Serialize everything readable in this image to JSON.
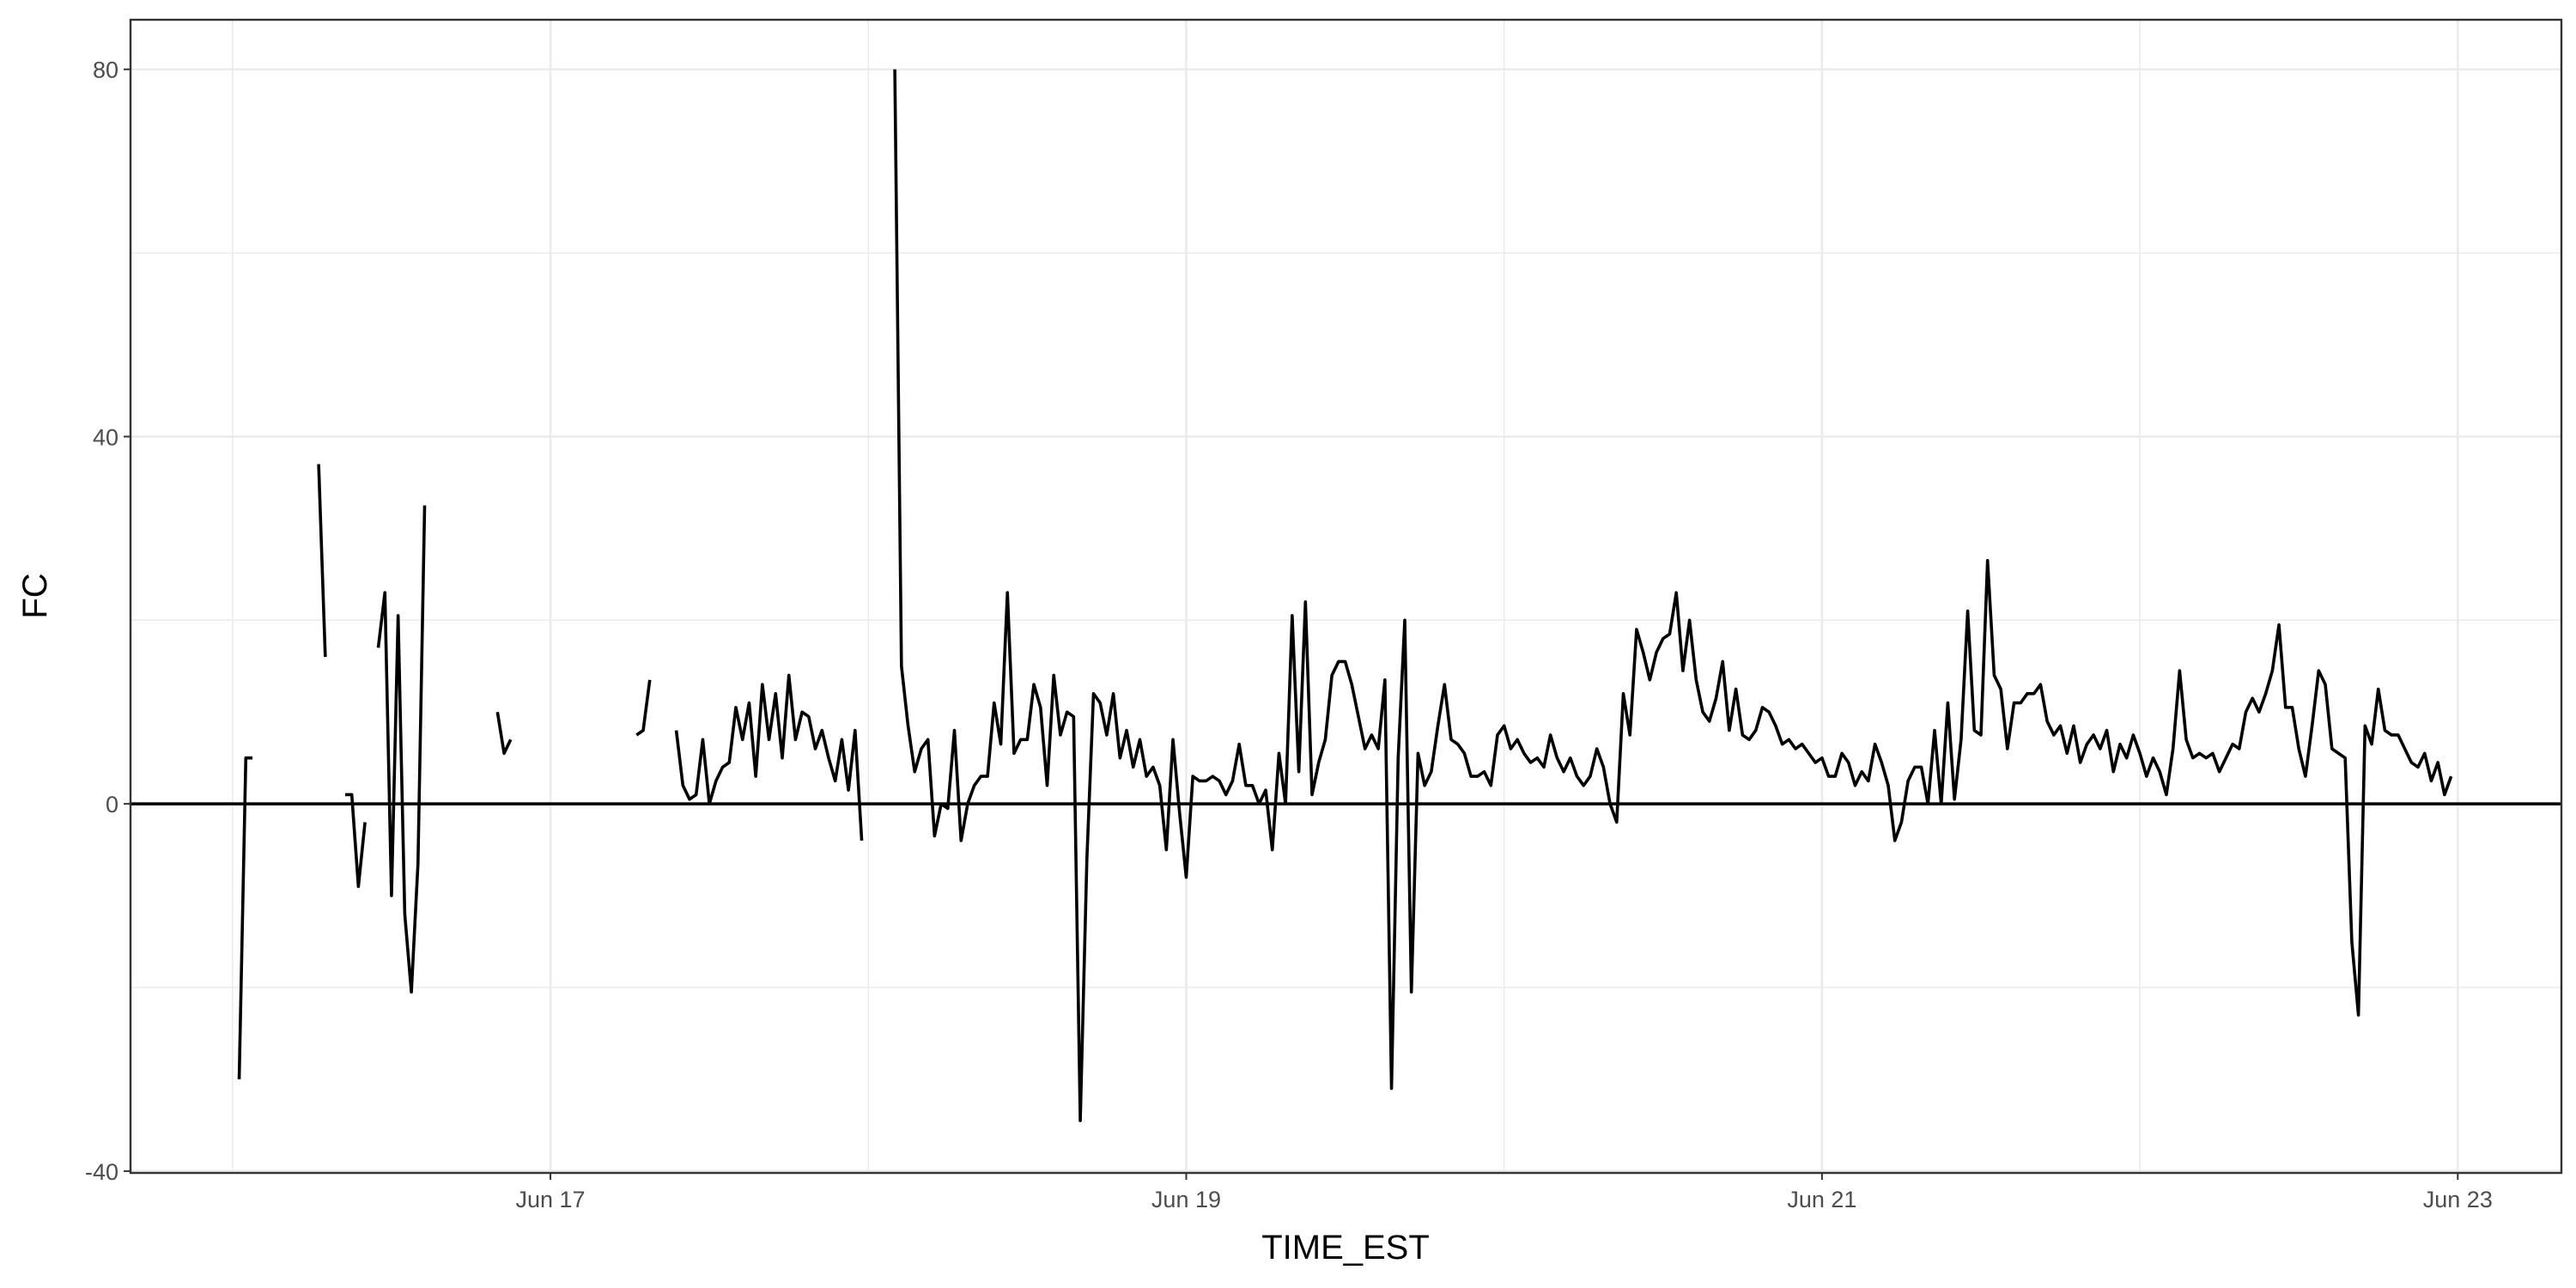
{
  "chart_data": {
    "type": "line",
    "x_label": "TIME_EST",
    "y_label": "FC",
    "color": "#000000",
    "x": [
      16.0208,
      16.0417,
      16.0625,
      16.0833,
      16.1042,
      16.125,
      16.1458,
      16.1667,
      16.1875,
      16.2083,
      16.2292,
      16.25,
      16.2708,
      16.2917,
      16.3125,
      16.3333,
      16.3542,
      16.375,
      16.3958,
      16.4167,
      16.4375,
      16.4583,
      16.4792,
      16.5,
      16.5208,
      16.5417,
      16.5625,
      16.5833,
      16.6042,
      16.625,
      16.6458,
      16.6667,
      16.6875,
      16.7083,
      16.7292,
      16.75,
      16.7708,
      16.7917,
      16.8125,
      16.8333,
      16.8542,
      16.875,
      16.8958,
      16.9167,
      16.9375,
      16.9583,
      16.9792,
      17,
      17.0208,
      17.0417,
      17.0625,
      17.0833,
      17.1042,
      17.125,
      17.1458,
      17.1667,
      17.1875,
      17.2083,
      17.2292,
      17.25,
      17.2708,
      17.2917,
      17.3125,
      17.3333,
      17.3542,
      17.375,
      17.3958,
      17.4167,
      17.4375,
      17.4583,
      17.4792,
      17.5,
      17.5208,
      17.5417,
      17.5625,
      17.5833,
      17.6042,
      17.625,
      17.6458,
      17.6667,
      17.6875,
      17.7083,
      17.7292,
      17.75,
      17.7708,
      17.7917,
      17.8125,
      17.8333,
      17.8542,
      17.875,
      17.8958,
      17.9167,
      17.9375,
      17.9583,
      17.9792,
      18,
      18.0208,
      18.0417,
      18.0625,
      18.0833,
      18.1042,
      18.125,
      18.1458,
      18.1667,
      18.1875,
      18.2083,
      18.2292,
      18.25,
      18.2708,
      18.2917,
      18.3125,
      18.3333,
      18.3542,
      18.375,
      18.3958,
      18.4167,
      18.4375,
      18.4583,
      18.4792,
      18.5,
      18.5208,
      18.5417,
      18.5625,
      18.5833,
      18.6042,
      18.625,
      18.6458,
      18.6667,
      18.6875,
      18.7083,
      18.7292,
      18.75,
      18.7708,
      18.7917,
      18.8125,
      18.8333,
      18.8542,
      18.875,
      18.8958,
      18.9167,
      18.9375,
      18.9583,
      18.9792,
      19,
      19.0208,
      19.0417,
      19.0625,
      19.0833,
      19.1042,
      19.125,
      19.1458,
      19.1667,
      19.1875,
      19.2083,
      19.2292,
      19.25,
      19.2708,
      19.2917,
      19.3125,
      19.3333,
      19.3542,
      19.375,
      19.3958,
      19.4167,
      19.4375,
      19.4583,
      19.4792,
      19.5,
      19.5208,
      19.5417,
      19.5625,
      19.5833,
      19.6042,
      19.625,
      19.6458,
      19.6667,
      19.6875,
      19.7083,
      19.7292,
      19.75,
      19.7708,
      19.7917,
      19.8125,
      19.8333,
      19.8542,
      19.875,
      19.8958,
      19.9167,
      19.9375,
      19.9583,
      19.9792,
      20,
      20.0208,
      20.0417,
      20.0625,
      20.0833,
      20.1042,
      20.125,
      20.1458,
      20.1667,
      20.1875,
      20.2083,
      20.2292,
      20.25,
      20.2708,
      20.2917,
      20.3125,
      20.3333,
      20.3542,
      20.375,
      20.3958,
      20.4167,
      20.4375,
      20.4583,
      20.4792,
      20.5,
      20.5208,
      20.5417,
      20.5625,
      20.5833,
      20.6042,
      20.625,
      20.6458,
      20.6667,
      20.6875,
      20.7083,
      20.7292,
      20.75,
      20.7708,
      20.7917,
      20.8125,
      20.8333,
      20.8542,
      20.875,
      20.8958,
      20.9167,
      20.9375,
      20.9583,
      20.9792,
      21,
      21.0208,
      21.0417,
      21.0625,
      21.0833,
      21.1042,
      21.125,
      21.1458,
      21.1667,
      21.1875,
      21.2083,
      21.2292,
      21.25,
      21.2708,
      21.2917,
      21.3125,
      21.3333,
      21.3542,
      21.375,
      21.3958,
      21.4167,
      21.4375,
      21.4583,
      21.4792,
      21.5,
      21.5208,
      21.5417,
      21.5625,
      21.5833,
      21.6042,
      21.625,
      21.6458,
      21.6667,
      21.6875,
      21.7083,
      21.7292,
      21.75,
      21.7708,
      21.7917,
      21.8125,
      21.8333,
      21.8542,
      21.875,
      21.8958,
      21.9167,
      21.9375,
      21.9583,
      21.9792,
      22,
      22.0208,
      22.0417,
      22.0625,
      22.0833,
      22.1042,
      22.125,
      22.1458,
      22.1667,
      22.1875,
      22.2083,
      22.2292,
      22.25,
      22.2708,
      22.2917,
      22.3125,
      22.3333,
      22.3542,
      22.375,
      22.3958,
      22.4167,
      22.4375,
      22.4583,
      22.4792,
      22.5,
      22.5208,
      22.5417,
      22.5625,
      22.5833,
      22.6042,
      22.625,
      22.6458,
      22.6667,
      22.6875,
      22.7083,
      22.7292,
      22.75,
      22.7708,
      22.7917,
      22.8125,
      22.8333,
      22.8542,
      22.875,
      22.8958,
      22.9167,
      22.9375,
      22.9583,
      22.9792
    ],
    "values": [
      -30,
      5,
      5,
      null,
      null,
      null,
      null,
      null,
      null,
      null,
      null,
      null,
      37,
      16,
      null,
      null,
      1,
      1,
      -9,
      -2,
      null,
      17,
      23,
      -10,
      20.5,
      -12,
      -20.5,
      -6.5,
      32.5,
      null,
      null,
      null,
      null,
      null,
      null,
      null,
      null,
      null,
      null,
      10,
      5.5,
      7,
      null,
      null,
      null,
      null,
      null,
      null,
      null,
      null,
      null,
      null,
      null,
      null,
      null,
      null,
      null,
      null,
      null,
      null,
      7.5,
      8,
      13.5,
      null,
      null,
      null,
      8,
      2,
      0.5,
      1,
      7,
      0,
      2.5,
      4,
      4.5,
      10.5,
      7,
      11,
      3,
      13,
      7,
      12,
      5,
      14,
      7,
      10,
      9.5,
      6,
      8,
      5,
      2.5,
      7,
      1.5,
      8,
      -4,
      null,
      null,
      null,
      null,
      80,
      15,
      8.5,
      3.5,
      6,
      7,
      -3.5,
      0,
      -0.5,
      8,
      -4,
      0,
      2,
      3,
      3,
      11,
      6.5,
      23,
      5.5,
      7,
      7,
      13,
      10.5,
      2,
      14,
      7.5,
      10,
      9.5,
      -34.5,
      -6,
      12,
      11,
      7.5,
      12,
      5,
      8,
      4,
      7,
      3,
      4,
      2,
      -5,
      7,
      -1,
      -8,
      3,
      2.5,
      2.5,
      3,
      2.5,
      1,
      2.5,
      6.5,
      2,
      2,
      0,
      1.5,
      -5,
      5.5,
      0,
      20.5,
      3.5,
      22,
      1,
      4.5,
      7,
      14,
      15.5,
      15.5,
      13,
      9.5,
      6,
      7.5,
      6,
      13.5,
      -31,
      5,
      20,
      -20.5,
      5.5,
      2,
      3.5,
      8.5,
      13,
      7,
      6.5,
      5.5,
      3,
      3,
      3.5,
      2,
      7.5,
      8.5,
      6,
      7,
      5.5,
      4.5,
      5,
      4,
      7.5,
      5,
      3.5,
      5,
      3,
      2,
      3,
      6,
      4,
      0,
      -2,
      12,
      7.5,
      19,
      16.5,
      13.5,
      16.5,
      18,
      18.5,
      23,
      14.5,
      20,
      13.5,
      10,
      9,
      11.5,
      15.5,
      8,
      12.5,
      7.5,
      7,
      8,
      10.5,
      10,
      8.5,
      6.5,
      7,
      6,
      6.5,
      5.5,
      4.5,
      5,
      3,
      3,
      5.5,
      4.5,
      2,
      3.5,
      2.5,
      6.5,
      4.5,
      2,
      -4,
      -2,
      2.5,
      4,
      4,
      0,
      8,
      0,
      11,
      0.5,
      7,
      21,
      8,
      7.5,
      26.5,
      14,
      12.5,
      6,
      11,
      11,
      12,
      12,
      13,
      9,
      7.5,
      8.5,
      5.5,
      8.5,
      4.5,
      6.5,
      7.5,
      6,
      8,
      3.5,
      6.5,
      5,
      7.5,
      5.5,
      3,
      5,
      3.5,
      1,
      6,
      14.5,
      7,
      5,
      5.5,
      5,
      5.5,
      3.5,
      5,
      6.5,
      6,
      10,
      11.5,
      10,
      12,
      14.5,
      19.5,
      10.5,
      10.5,
      6,
      3,
      8.5,
      14.5,
      13,
      6,
      5.5,
      5,
      -15,
      -23,
      8.5,
      6.5,
      12.5,
      8,
      7.5,
      7.5,
      6,
      4.5,
      4,
      5.5,
      2.5,
      4.5,
      1,
      3
    ],
    "hline": 0,
    "xlim": [
      15.679,
      23.326
    ],
    "xticks": [
      {
        "value": 17,
        "label": "Jun 17"
      },
      {
        "value": 19,
        "label": "Jun 19"
      },
      {
        "value": 21,
        "label": "Jun 21"
      },
      {
        "value": 23,
        "label": "Jun 23"
      }
    ],
    "ylim": [
      -40.2,
      85.4
    ],
    "yticks": [
      -40,
      0,
      40,
      80
    ],
    "grid": true
  }
}
